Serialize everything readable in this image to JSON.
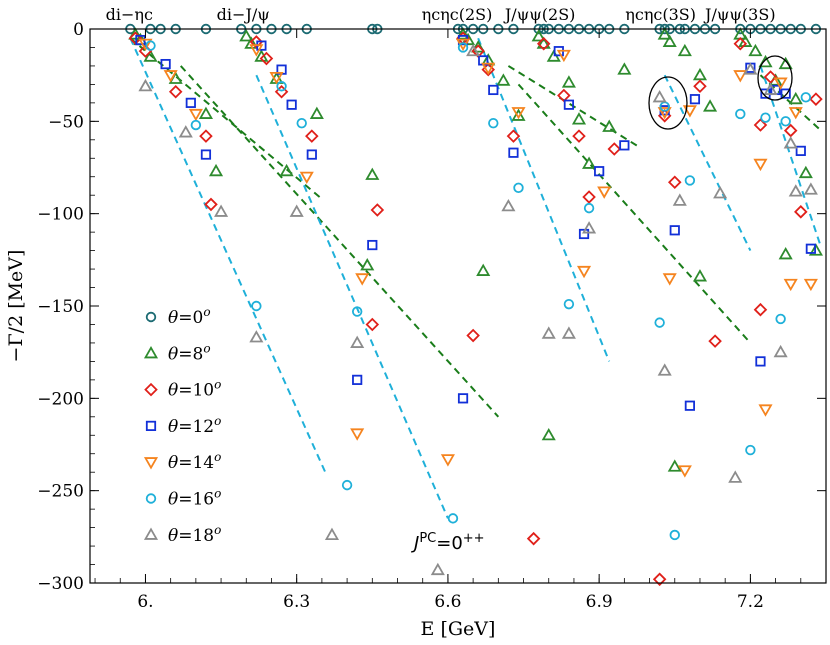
{
  "chart_data": {
    "type": "scatter",
    "xlabel": "E [GeV]",
    "ylabel": "−Γ/2 [MeV]",
    "xlim": [
      5.89,
      7.35
    ],
    "ylim": [
      -300,
      0
    ],
    "xticks": [
      {
        "v": 6.0,
        "label": "6."
      },
      {
        "v": 6.3,
        "label": "6.3"
      },
      {
        "v": 6.6,
        "label": "6.6"
      },
      {
        "v": 6.9,
        "label": "6.9"
      },
      {
        "v": 7.2,
        "label": "7.2"
      }
    ],
    "yticks": [
      {
        "v": 0,
        "label": "0"
      },
      {
        "v": -50,
        "label": "−50"
      },
      {
        "v": -100,
        "label": "−100"
      },
      {
        "v": -150,
        "label": "−150"
      },
      {
        "v": -200,
        "label": "−200"
      },
      {
        "v": -250,
        "label": "−250"
      },
      {
        "v": -300,
        "label": "−300"
      }
    ],
    "annotation": "J^PC=0^++",
    "thresholds": [
      {
        "label": "di−ηc",
        "x": 5.968
      },
      {
        "label": "di−J/ψ",
        "x": 6.194
      },
      {
        "label": "ηcηc(2S)",
        "x": 6.618
      },
      {
        "label": "J/ψψ(2S)",
        "x": 6.783
      },
      {
        "label": "ηcηc(3S)",
        "x": 7.022
      },
      {
        "label": "J/ψψ(3S)",
        "x": 7.18
      }
    ],
    "series": [
      {
        "name": "θ=0°",
        "label": "θ=0o",
        "marker": "circle-open",
        "color": "#1c6b73",
        "open": true,
        "x": [
          5.97,
          6.01,
          6.03,
          6.06,
          6.12,
          6.19,
          6.22,
          6.25,
          6.28,
          6.32,
          6.45,
          6.46,
          6.62,
          6.63,
          6.65,
          6.67,
          6.7,
          6.73,
          6.78,
          6.79,
          6.8,
          6.82,
          6.84,
          6.86,
          6.88,
          6.9,
          6.92,
          6.95,
          7.02,
          7.03,
          7.04,
          7.06,
          7.07,
          7.09,
          7.11,
          7.13,
          7.18,
          7.2,
          7.22,
          7.24,
          7.26,
          7.28,
          7.3,
          7.33
        ],
        "y": [
          0,
          0,
          0,
          0,
          0,
          0,
          0,
          0,
          0,
          0,
          0,
          0,
          0,
          0,
          0,
          0,
          0,
          0,
          0,
          0,
          0,
          0,
          0,
          0,
          0,
          0,
          0,
          0,
          0,
          0,
          0,
          0,
          0,
          0,
          0,
          0,
          0,
          0,
          0,
          0,
          0,
          0,
          0,
          0
        ]
      },
      {
        "name": "θ=8°",
        "label": "θ=8o",
        "marker": "triangle-up",
        "color": "#2e8b2e",
        "open": true,
        "x": [
          5.98,
          5.99,
          6.01,
          6.06,
          6.12,
          6.2,
          6.21,
          6.23,
          6.26,
          6.28,
          6.34,
          6.44,
          6.45,
          6.63,
          6.64,
          6.66,
          6.68,
          6.71,
          6.74,
          6.78,
          6.79,
          6.81,
          6.84,
          6.86,
          6.88,
          6.92,
          6.95,
          7.03,
          7.04,
          7.07,
          7.1,
          7.12,
          7.18,
          7.19,
          7.21,
          7.23,
          7.25,
          7.27,
          7.29,
          7.31,
          7.33,
          6.14,
          6.67,
          6.8,
          7.05,
          7.1,
          7.27
        ],
        "y": [
          -3,
          -6,
          -15,
          -27,
          -46,
          -4,
          -8,
          -15,
          -27,
          -77,
          -46,
          -128,
          -79,
          -3,
          -6,
          -10,
          -17,
          -28,
          -47,
          -4,
          -8,
          -15,
          -29,
          -49,
          -73,
          -53,
          -22,
          -3,
          -7,
          -12,
          -25,
          -42,
          -3,
          -7,
          -12,
          -18,
          -28,
          -19,
          -38,
          -78,
          -120,
          -77,
          -131,
          -220,
          -237,
          -134,
          -122
        ]
      },
      {
        "name": "θ=10°",
        "label": "θ=10o",
        "marker": "diamond",
        "color": "#e0201a",
        "open": true,
        "x": [
          5.98,
          6.0,
          6.06,
          6.12,
          6.13,
          6.22,
          6.24,
          6.27,
          6.33,
          6.46,
          6.45,
          6.63,
          6.66,
          6.68,
          6.73,
          6.79,
          6.83,
          6.86,
          6.88,
          6.93,
          7.03,
          7.05,
          7.1,
          7.18,
          7.22,
          7.24,
          7.28,
          7.3,
          7.33,
          6.65,
          6.77,
          7.02,
          7.13,
          7.22
        ],
        "y": [
          -5,
          -12,
          -34,
          -58,
          -95,
          -7,
          -16,
          -34,
          -58,
          -98,
          -160,
          -5,
          -12,
          -22,
          -58,
          -8,
          -36,
          -58,
          -91,
          -65,
          -47,
          -83,
          -31,
          -8,
          -52,
          -26,
          -55,
          -99,
          -38,
          -166,
          -276,
          -298,
          -169,
          -152
        ]
      },
      {
        "name": "θ=12°",
        "label": "θ=12o",
        "marker": "square",
        "color": "#1230d8",
        "open": true,
        "x": [
          5.99,
          6.04,
          6.09,
          6.12,
          6.23,
          6.27,
          6.29,
          6.33,
          6.45,
          6.42,
          6.63,
          6.67,
          6.69,
          6.73,
          6.82,
          6.84,
          6.87,
          6.9,
          6.95,
          7.03,
          7.05,
          7.09,
          7.2,
          7.23,
          7.25,
          7.27,
          7.3,
          7.32,
          6.63,
          7.08,
          7.22
        ],
        "y": [
          -6,
          -19,
          -40,
          -68,
          -9,
          -22,
          -41,
          -68,
          -117,
          -190,
          -6,
          -17,
          -33,
          -67,
          -12,
          -41,
          -111,
          -77,
          -63,
          -44,
          -109,
          -38,
          -21,
          -35,
          -33,
          -35,
          -66,
          -119,
          -200,
          -204,
          -180
        ]
      },
      {
        "name": "θ=14°",
        "label": "θ=14o",
        "marker": "triangle-down",
        "color": "#f5841f",
        "open": true,
        "x": [
          6.0,
          6.05,
          6.1,
          6.22,
          6.26,
          6.32,
          6.43,
          6.42,
          6.63,
          6.68,
          6.74,
          6.83,
          6.87,
          6.91,
          7.03,
          7.04,
          7.08,
          7.18,
          7.22,
          7.26,
          7.29,
          7.32,
          6.6,
          7.07,
          7.23,
          7.28
        ],
        "y": [
          -8,
          -25,
          -46,
          -11,
          -26,
          -80,
          -135,
          -219,
          -8,
          -21,
          -45,
          -14,
          -131,
          -88,
          -45,
          -135,
          -44,
          -25,
          -73,
          -29,
          -45,
          -138,
          -233,
          -239,
          -206,
          -138
        ]
      },
      {
        "name": "θ=16°",
        "label": "θ=16o",
        "marker": "circle",
        "color": "#1fb0d9",
        "open": true,
        "x": [
          6.01,
          6.1,
          6.22,
          6.27,
          6.31,
          6.42,
          6.4,
          6.63,
          6.69,
          6.74,
          6.84,
          6.88,
          7.03,
          7.02,
          7.08,
          7.18,
          7.23,
          7.27,
          7.31,
          6.61,
          7.05,
          7.2,
          7.26
        ],
        "y": [
          -9,
          -52,
          -150,
          -31,
          -51,
          -153,
          -247,
          -10,
          -51,
          -86,
          -149,
          -97,
          -42,
          -159,
          -82,
          -46,
          -48,
          -50,
          -37,
          -265,
          -274,
          -228,
          -157
        ]
      },
      {
        "name": "θ=18°",
        "label": "θ=18o",
        "marker": "triangle-up",
        "color": "#8c8c8c",
        "open": true,
        "x": [
          6.0,
          6.08,
          6.15,
          6.22,
          6.3,
          6.42,
          6.37,
          6.65,
          6.72,
          6.8,
          6.88,
          7.02,
          7.03,
          7.06,
          7.14,
          7.2,
          7.24,
          7.28,
          7.29,
          7.32,
          6.58,
          6.84,
          7.17,
          7.26
        ],
        "y": [
          -31,
          -56,
          -99,
          -167,
          -99,
          -170,
          -274,
          -12,
          -96,
          -165,
          -108,
          -37,
          -185,
          -93,
          -89,
          -22,
          -33,
          -62,
          -88,
          -87,
          -293,
          -165,
          -243,
          -175
        ]
      }
    ],
    "fit_lines": [
      {
        "color": "#1a7d1a",
        "x": [
          5.97,
          6.35
        ],
        "y": [
          -5,
          -92
        ]
      },
      {
        "color": "#1a7d1a",
        "x": [
          6.07,
          6.7
        ],
        "y": [
          -20,
          -210
        ]
      },
      {
        "color": "#1a7d1a",
        "x": [
          6.72,
          6.98
        ],
        "y": [
          -20,
          -64
        ]
      },
      {
        "color": "#1a7d1a",
        "x": [
          6.74,
          7.2
        ],
        "y": [
          -30,
          -170
        ]
      },
      {
        "color": "#1a7d1a",
        "x": [
          7.22,
          7.34
        ],
        "y": [
          -25,
          -55
        ]
      },
      {
        "color": "#1fb0d9",
        "x": [
          5.97,
          6.36
        ],
        "y": [
          -5,
          -242
        ]
      },
      {
        "color": "#1fb0d9",
        "x": [
          6.22,
          6.6
        ],
        "y": [
          -25,
          -265
        ]
      },
      {
        "color": "#1fb0d9",
        "x": [
          6.66,
          6.92
        ],
        "y": [
          -5,
          -180
        ]
      },
      {
        "color": "#1fb0d9",
        "x": [
          7.03,
          7.2
        ],
        "y": [
          -25,
          -120
        ]
      },
      {
        "color": "#1fb0d9",
        "x": [
          7.22,
          7.34
        ],
        "y": [
          -20,
          -118
        ]
      }
    ]
  }
}
